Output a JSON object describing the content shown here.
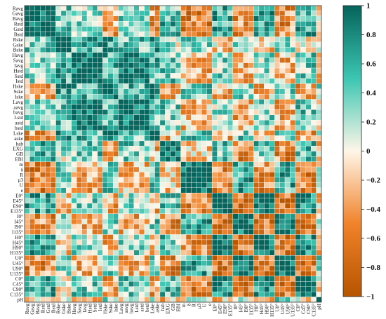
{
  "chart_data": {
    "type": "heatmap",
    "title": "",
    "xlabel": "",
    "ylabel": "",
    "labels": [
      "Ravg",
      "Gavg",
      "Bavg",
      "Rstd",
      "Gstd",
      "Bstd",
      "Rske",
      "Gske",
      "Bske",
      "Havg",
      "Savg",
      "Iavg",
      "Hstd",
      "Sstd",
      "Istd",
      "Hske",
      "Sske",
      "Iske",
      "Lavg",
      "aavg",
      "bavg",
      "Lstd",
      "astd",
      "bstd",
      "Lske",
      "aske",
      "hab",
      "EXG",
      "GB",
      "EBI",
      "m",
      "δ",
      "R",
      "μ3",
      "U",
      "e",
      "E0°",
      "E45°",
      "E90°",
      "E135°",
      "I0°",
      "I45°",
      "I90°",
      "I135°",
      "H0°",
      "H45°",
      "H90°",
      "H135°",
      "U0°",
      "U45°",
      "U90°",
      "U135°",
      "C0°",
      "C45°",
      "C90°",
      "C135°",
      "pH"
    ],
    "diagonal": 1,
    "matrix": "approximate correlation values (symmetric), generated by script below",
    "colorbar": {
      "min": -1,
      "max": 1,
      "ticks": [
        "1",
        "0.8",
        "0.6",
        "0.4",
        "0.2",
        "0",
        "−0.2",
        "−0.4",
        "−0.6",
        "−0.8",
        "−1"
      ],
      "colors": {
        "negative": "#b85a00",
        "mid_negative": "#f2872a",
        "zero": "#fff6e8",
        "mid_positive": "#3cc8b4",
        "positive": "#06625a"
      }
    },
    "grid": true,
    "legend": "right"
  }
}
